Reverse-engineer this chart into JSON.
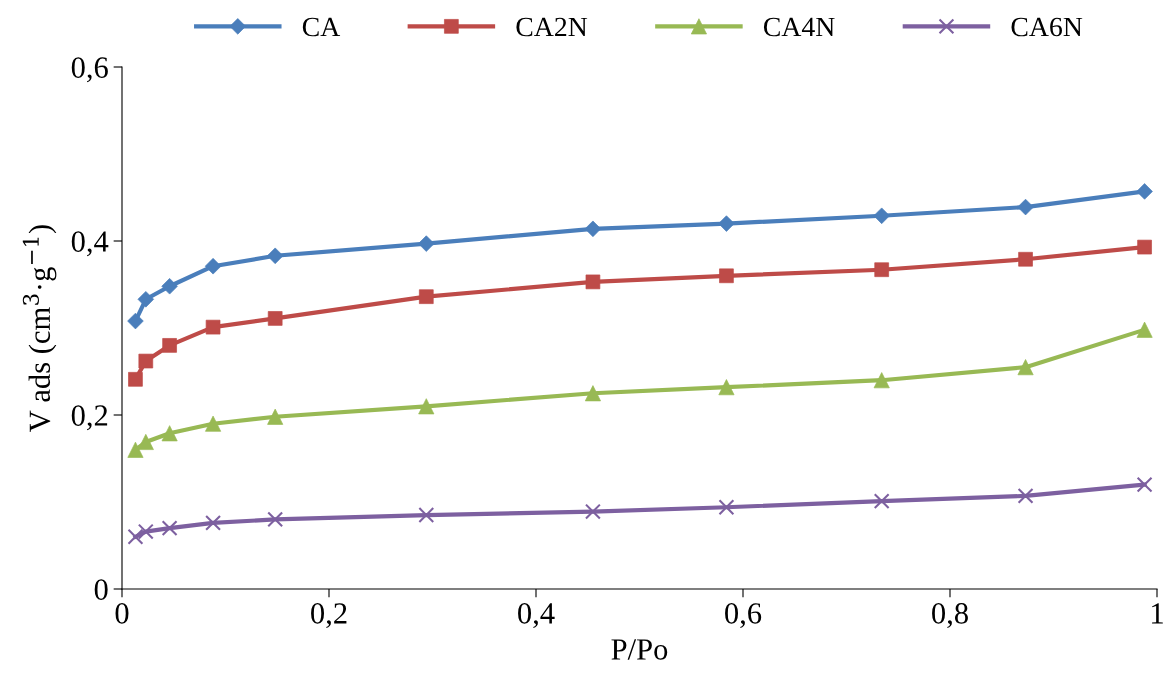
{
  "chart_data": {
    "type": "line",
    "xlabel": "P/Po",
    "ylabel": "V ads (cm$^{3}$·g$^{−1}$)",
    "x": [
      0.013,
      0.023,
      0.046,
      0.088,
      0.148,
      0.294,
      0.455,
      0.584,
      0.734,
      0.873,
      0.988
    ],
    "series": [
      {
        "name": "CA",
        "color": "#4a7ebb",
        "marker": "diamond",
        "values": [
          0.308,
          0.333,
          0.348,
          0.371,
          0.383,
          0.397,
          0.414,
          0.42,
          0.429,
          0.439,
          0.457
        ]
      },
      {
        "name": "CA2N",
        "color": "#be4b48",
        "marker": "square",
        "values": [
          0.241,
          0.262,
          0.28,
          0.301,
          0.311,
          0.336,
          0.353,
          0.36,
          0.367,
          0.379,
          0.393
        ]
      },
      {
        "name": "CA4N",
        "color": "#98b954",
        "marker": "triangle",
        "values": [
          0.16,
          0.169,
          0.179,
          0.19,
          0.198,
          0.21,
          0.225,
          0.232,
          0.24,
          0.255,
          0.298
        ]
      },
      {
        "name": "CA6N",
        "color": "#7d60a0",
        "marker": "cross",
        "values": [
          0.06,
          0.066,
          0.07,
          0.076,
          0.08,
          0.085,
          0.089,
          0.094,
          0.101,
          0.107,
          0.12
        ]
      }
    ],
    "xlim": [
      0,
      1
    ],
    "xticks": [
      0,
      {
        "value": 0.2,
        "label": "0,2"
      },
      {
        "value": 0.4,
        "label": "0,4"
      },
      {
        "value": 0.6,
        "label": "0,6"
      },
      {
        "value": 0.8,
        "label": "0,8"
      },
      1
    ],
    "ylim": [
      0,
      0.6
    ],
    "yticks": [
      0,
      {
        "value": 0.2,
        "label": "0,2"
      },
      {
        "value": 0.4,
        "label": "0,4"
      },
      {
        "value": 0.6,
        "label": "0,6"
      }
    ],
    "grid": false,
    "legend": "top",
    "line_style": "solid"
  }
}
